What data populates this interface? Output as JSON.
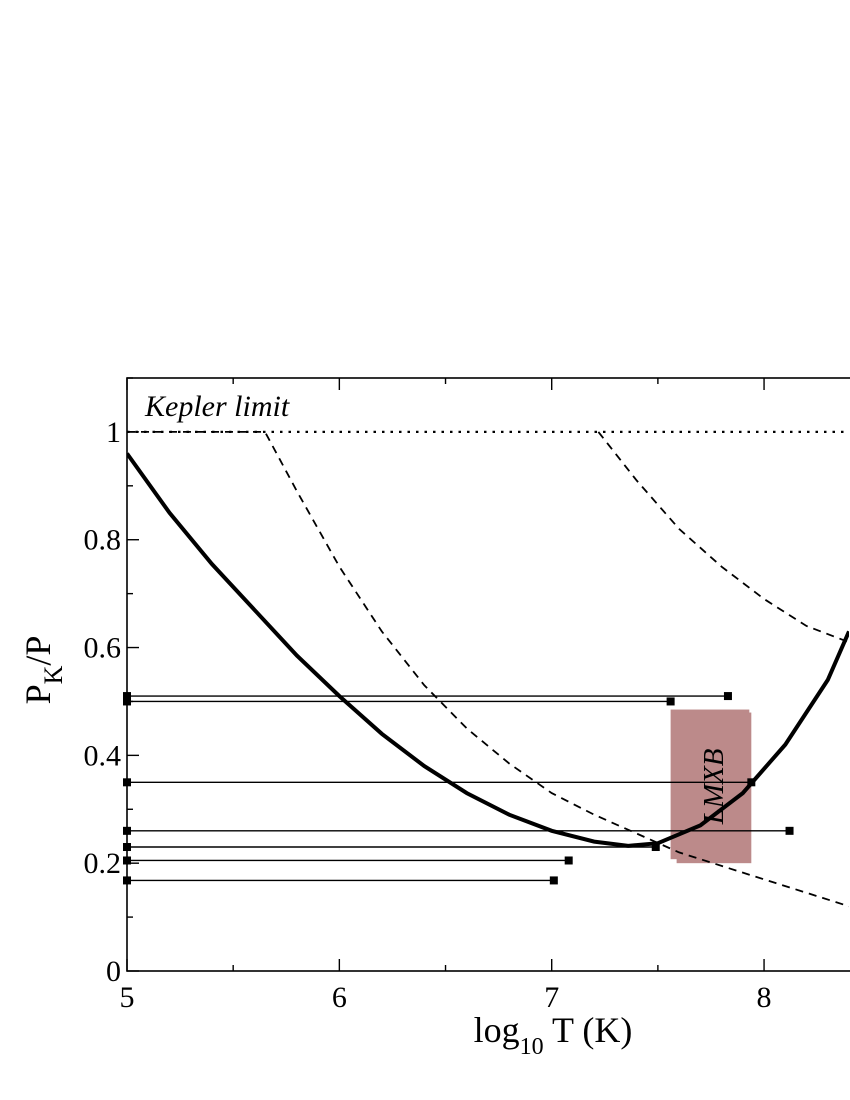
{
  "chart_data": {
    "type": "line",
    "xlim": [
      5,
      8.4
    ],
    "ylim": [
      0,
      1.1
    ],
    "xlabel": {
      "main": "log",
      "sub": "10",
      "rest": " T (K)"
    },
    "ylabel": {
      "main": "P",
      "sub": "K",
      "rest": "/P"
    },
    "x_ticks": [
      {
        "value": 5,
        "label": "5"
      },
      {
        "value": 6,
        "label": "6"
      },
      {
        "value": 7,
        "label": "7"
      },
      {
        "value": 8,
        "label": "8"
      }
    ],
    "y_ticks": [
      {
        "value": 0,
        "label": "0"
      },
      {
        "value": 0.2,
        "label": "0.2"
      },
      {
        "value": 0.4,
        "label": "0.4"
      },
      {
        "value": 0.6,
        "label": "0.6"
      },
      {
        "value": 0.8,
        "label": "0.8"
      },
      {
        "value": 1.0,
        "label": "1"
      }
    ],
    "grid": false,
    "annotations": {
      "kepler": "Kepler limit",
      "lmxb": "LMXB"
    },
    "kepler_limit": {
      "y": 1.0,
      "style": "dotted"
    },
    "series": [
      {
        "style": "solid-thick",
        "points": [
          [
            5.0,
            0.96
          ],
          [
            5.2,
            0.85
          ],
          [
            5.4,
            0.755
          ],
          [
            5.6,
            0.67
          ],
          [
            5.8,
            0.585
          ],
          [
            6.0,
            0.51
          ],
          [
            6.2,
            0.44
          ],
          [
            6.4,
            0.38
          ],
          [
            6.6,
            0.33
          ],
          [
            6.8,
            0.29
          ],
          [
            7.0,
            0.26
          ],
          [
            7.2,
            0.24
          ],
          [
            7.36,
            0.232
          ],
          [
            7.5,
            0.237
          ],
          [
            7.7,
            0.27
          ],
          [
            7.9,
            0.33
          ],
          [
            8.1,
            0.42
          ],
          [
            8.3,
            0.54
          ],
          [
            8.4,
            0.63
          ]
        ]
      },
      {
        "style": "dashed",
        "points": [
          [
            5.0,
            1.0
          ],
          [
            5.65,
            1.0
          ],
          [
            5.8,
            0.89
          ],
          [
            6.0,
            0.75
          ],
          [
            6.2,
            0.63
          ],
          [
            6.4,
            0.53
          ],
          [
            6.6,
            0.45
          ],
          [
            6.8,
            0.385
          ],
          [
            7.0,
            0.33
          ],
          [
            7.2,
            0.29
          ],
          [
            7.4,
            0.255
          ],
          [
            7.6,
            0.22
          ],
          [
            7.8,
            0.195
          ],
          [
            8.0,
            0.17
          ],
          [
            8.2,
            0.145
          ],
          [
            8.4,
            0.12
          ]
        ]
      },
      {
        "style": "dashed",
        "points": [
          [
            7.22,
            1.0
          ],
          [
            7.4,
            0.91
          ],
          [
            7.6,
            0.82
          ],
          [
            7.8,
            0.75
          ],
          [
            8.0,
            0.69
          ],
          [
            8.2,
            0.64
          ],
          [
            8.4,
            0.61
          ]
        ]
      }
    ],
    "horizontal_bars": [
      {
        "y": 0.51,
        "x_end": 7.83
      },
      {
        "y": 0.5,
        "x_end": 7.56
      },
      {
        "y": 0.35,
        "x_end": 7.94
      },
      {
        "y": 0.26,
        "x_end": 8.12
      },
      {
        "y": 0.23,
        "x_end": 7.49
      },
      {
        "y": 0.205,
        "x_end": 7.08
      },
      {
        "y": 0.168,
        "x_end": 7.01
      }
    ],
    "lmxb_region": {
      "x0": 7.56,
      "x1": 7.94,
      "y0": 0.2,
      "y1": 0.485,
      "color": "#bc8a8a"
    },
    "colors": {
      "line": "#000000",
      "lmxb": "#bc8a8a"
    }
  }
}
